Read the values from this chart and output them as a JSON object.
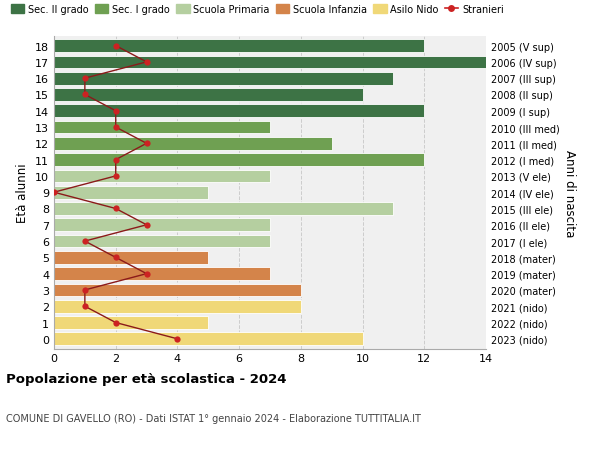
{
  "ages": [
    18,
    17,
    16,
    15,
    14,
    13,
    12,
    11,
    10,
    9,
    8,
    7,
    6,
    5,
    4,
    3,
    2,
    1,
    0
  ],
  "right_labels": [
    "2005 (V sup)",
    "2006 (IV sup)",
    "2007 (III sup)",
    "2008 (II sup)",
    "2009 (I sup)",
    "2010 (III med)",
    "2011 (II med)",
    "2012 (I med)",
    "2013 (V ele)",
    "2014 (IV ele)",
    "2015 (III ele)",
    "2016 (II ele)",
    "2017 (I ele)",
    "2018 (mater)",
    "2019 (mater)",
    "2020 (mater)",
    "2021 (nido)",
    "2022 (nido)",
    "2023 (nido)"
  ],
  "bar_values": [
    12,
    14,
    11,
    10,
    12,
    7,
    9,
    12,
    7,
    5,
    11,
    7,
    7,
    5,
    7,
    8,
    8,
    5,
    10
  ],
  "bar_colors": [
    "#3d7345",
    "#3d7345",
    "#3d7345",
    "#3d7345",
    "#3d7345",
    "#6fa052",
    "#6fa052",
    "#6fa052",
    "#b5cfa0",
    "#b5cfa0",
    "#b5cfa0",
    "#b5cfa0",
    "#b5cfa0",
    "#d4844a",
    "#d4844a",
    "#d4844a",
    "#f0d878",
    "#f0d878",
    "#f0d878"
  ],
  "stranieri_values": [
    2,
    3,
    1,
    1,
    2,
    2,
    3,
    2,
    2,
    0,
    2,
    3,
    1,
    2,
    3,
    1,
    1,
    2,
    4
  ],
  "xlim": [
    0,
    14
  ],
  "xticks": [
    0,
    2,
    4,
    6,
    8,
    10,
    12,
    14
  ],
  "title": "Popolazione per età scolastica - 2024",
  "subtitle": "COMUNE DI GAVELLO (RO) - Dati ISTAT 1° gennaio 2024 - Elaborazione TUTTITALIA.IT",
  "ylabel": "Età alunni",
  "right_ylabel": "Anni di nascita",
  "legend_labels": [
    "Sec. II grado",
    "Sec. I grado",
    "Scuola Primaria",
    "Scuola Infanzia",
    "Asilo Nido",
    "Stranieri"
  ],
  "legend_colors": [
    "#3d7345",
    "#6fa052",
    "#b5cfa0",
    "#d4844a",
    "#f0d878",
    "#aa2222"
  ],
  "bar_height": 0.78,
  "background_color": "#f0f0f0",
  "grid_color": "#cccccc",
  "ylim_bottom": -0.6,
  "ylim_top": 18.6
}
